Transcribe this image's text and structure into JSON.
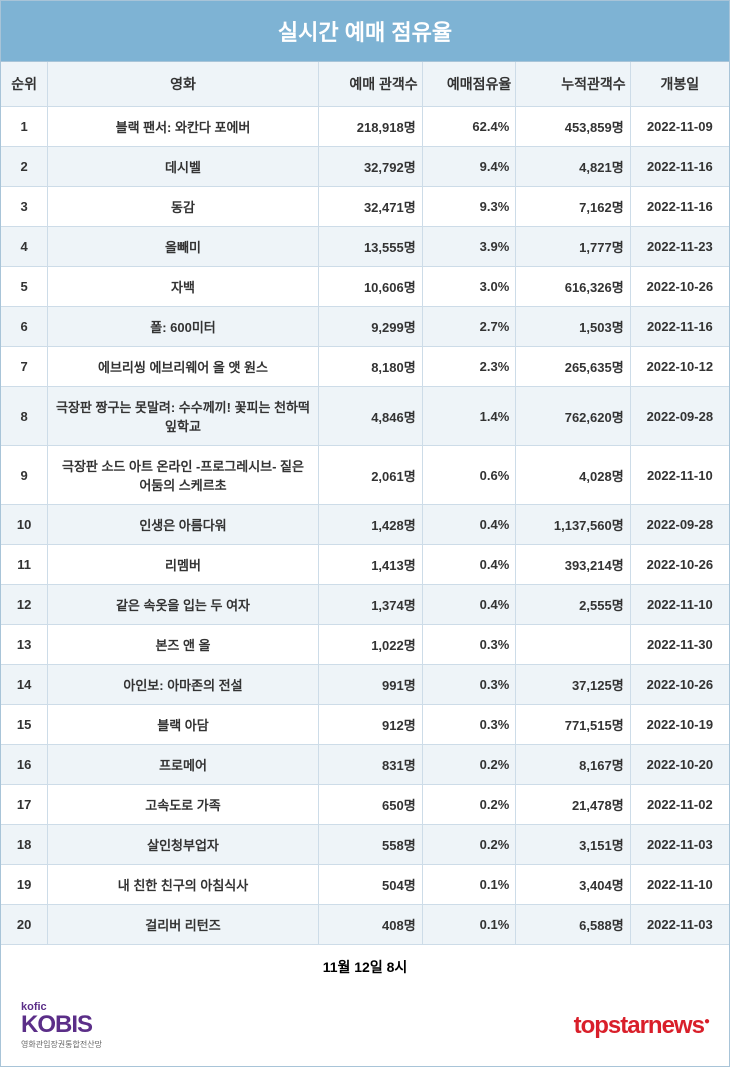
{
  "title": "실시간 예매 점유율",
  "columns": {
    "rank": "순위",
    "movie": "영화",
    "booking": "예매 관객수",
    "share": "예매점유율",
    "cumulative": "누적관객수",
    "release": "개봉일"
  },
  "rows": [
    {
      "rank": "1",
      "movie": "블랙 팬서: 와칸다 포에버",
      "booking": "218,918명",
      "share": "62.4%",
      "cumulative": "453,859명",
      "release": "2022-11-09"
    },
    {
      "rank": "2",
      "movie": "데시벨",
      "booking": "32,792명",
      "share": "9.4%",
      "cumulative": "4,821명",
      "release": "2022-11-16"
    },
    {
      "rank": "3",
      "movie": "동감",
      "booking": "32,471명",
      "share": "9.3%",
      "cumulative": "7,162명",
      "release": "2022-11-16"
    },
    {
      "rank": "4",
      "movie": "올빼미",
      "booking": "13,555명",
      "share": "3.9%",
      "cumulative": "1,777명",
      "release": "2022-11-23"
    },
    {
      "rank": "5",
      "movie": "자백",
      "booking": "10,606명",
      "share": "3.0%",
      "cumulative": "616,326명",
      "release": "2022-10-26"
    },
    {
      "rank": "6",
      "movie": "폴: 600미터",
      "booking": "9,299명",
      "share": "2.7%",
      "cumulative": "1,503명",
      "release": "2022-11-16"
    },
    {
      "rank": "7",
      "movie": "에브리씽 에브리웨어 올 앳 원스",
      "booking": "8,180명",
      "share": "2.3%",
      "cumulative": "265,635명",
      "release": "2022-10-12"
    },
    {
      "rank": "8",
      "movie": "극장판 짱구는 못말려: 수수께끼! 꽃피는 천하떡잎학교",
      "booking": "4,846명",
      "share": "1.4%",
      "cumulative": "762,620명",
      "release": "2022-09-28"
    },
    {
      "rank": "9",
      "movie": "극장판 소드 아트 온라인 -프로그레시브- 짙은 어둠의 스케르초",
      "booking": "2,061명",
      "share": "0.6%",
      "cumulative": "4,028명",
      "release": "2022-11-10"
    },
    {
      "rank": "10",
      "movie": "인생은 아름다워",
      "booking": "1,428명",
      "share": "0.4%",
      "cumulative": "1,137,560명",
      "release": "2022-09-28"
    },
    {
      "rank": "11",
      "movie": "리멤버",
      "booking": "1,413명",
      "share": "0.4%",
      "cumulative": "393,214명",
      "release": "2022-10-26"
    },
    {
      "rank": "12",
      "movie": "같은 속옷을 입는 두 여자",
      "booking": "1,374명",
      "share": "0.4%",
      "cumulative": "2,555명",
      "release": "2022-11-10"
    },
    {
      "rank": "13",
      "movie": "본즈 앤 올",
      "booking": "1,022명",
      "share": "0.3%",
      "cumulative": "",
      "release": "2022-11-30"
    },
    {
      "rank": "14",
      "movie": "아인보: 아마존의 전설",
      "booking": "991명",
      "share": "0.3%",
      "cumulative": "37,125명",
      "release": "2022-10-26"
    },
    {
      "rank": "15",
      "movie": "블랙 아담",
      "booking": "912명",
      "share": "0.3%",
      "cumulative": "771,515명",
      "release": "2022-10-19"
    },
    {
      "rank": "16",
      "movie": "프로메어",
      "booking": "831명",
      "share": "0.2%",
      "cumulative": "8,167명",
      "release": "2022-10-20"
    },
    {
      "rank": "17",
      "movie": "고속도로 가족",
      "booking": "650명",
      "share": "0.2%",
      "cumulative": "21,478명",
      "release": "2022-11-02"
    },
    {
      "rank": "18",
      "movie": "살인청부업자",
      "booking": "558명",
      "share": "0.2%",
      "cumulative": "3,151명",
      "release": "2022-11-03"
    },
    {
      "rank": "19",
      "movie": "내 친한 친구의 아침식사",
      "booking": "504명",
      "share": "0.1%",
      "cumulative": "3,404명",
      "release": "2022-11-10"
    },
    {
      "rank": "20",
      "movie": "걸리버 리턴즈",
      "booking": "408명",
      "share": "0.1%",
      "cumulative": "6,588명",
      "release": "2022-11-03"
    }
  ],
  "footer_timestamp": "11월 12일 8시",
  "logos": {
    "kofic": "kofic",
    "kobis": "KOBIS",
    "kobis_sub": "영화관입장권통합전산망",
    "topstar": "topstarnews"
  },
  "styling": {
    "header_bg": "#7eb3d4",
    "header_text": "#ffffff",
    "alt_row_bg": "#eef4f8",
    "border_color": "#cddce8",
    "text_color": "#333333",
    "kobis_color": "#5b2e88",
    "topstar_color": "#d91f2a",
    "title_fontsize": 22,
    "header_fontsize": 14,
    "cell_fontsize": 13,
    "col_widths": {
      "rank": 45,
      "movie": 260,
      "booking": 100,
      "share": 90,
      "cumulative": 110,
      "release": 95
    }
  }
}
